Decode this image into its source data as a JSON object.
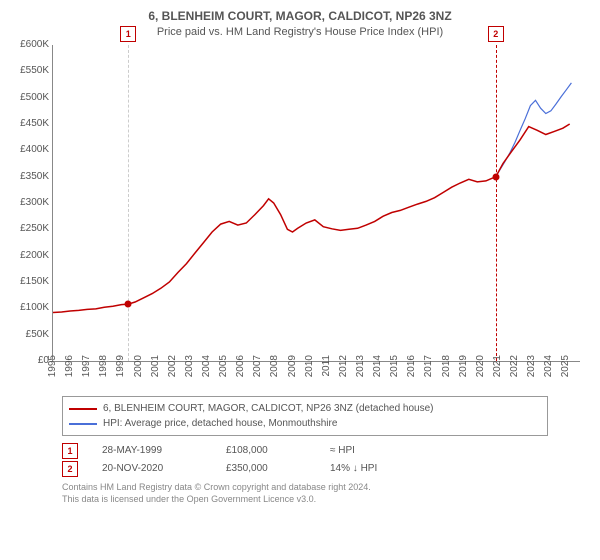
{
  "title": "6, BLENHEIM COURT, MAGOR, CALDICOT, NP26 3NZ",
  "subtitle": "Price paid vs. HM Land Registry's House Price Index (HPI)",
  "chart": {
    "type": "line",
    "background_color": "#ffffff",
    "axis_color": "#888888",
    "text_color": "#555555",
    "label_fontsize": 10,
    "ylim": [
      0,
      600000
    ],
    "ytick_step": 50000,
    "y_prefix": "£",
    "y_suffix": "K",
    "years": [
      1995,
      1996,
      1997,
      1998,
      1999,
      2000,
      2001,
      2002,
      2003,
      2004,
      2005,
      2006,
      2007,
      2008,
      2009,
      2010,
      2011,
      2012,
      2013,
      2014,
      2015,
      2016,
      2017,
      2018,
      2019,
      2020,
      2021,
      2022,
      2023,
      2024,
      2025
    ],
    "xlim": [
      1995,
      2025.8
    ],
    "series": {
      "price_paid": {
        "color": "#c00000",
        "line_width": 1.5,
        "x": [
          1995,
          1995.5,
          1996,
          1996.5,
          1997,
          1997.5,
          1998,
          1998.5,
          1999,
          1999.4,
          1999.8,
          2000.3,
          2000.8,
          2001.3,
          2001.8,
          2002.3,
          2002.8,
          2003.3,
          2003.8,
          2004.3,
          2004.8,
          2005.3,
          2005.8,
          2006.3,
          2006.8,
          2007.3,
          2007.6,
          2007.9,
          2008.3,
          2008.7,
          2009,
          2009.3,
          2009.8,
          2010.3,
          2010.8,
          2011.3,
          2011.8,
          2012.3,
          2012.8,
          2013.3,
          2013.8,
          2014.3,
          2014.8,
          2015.3,
          2015.8,
          2016.3,
          2016.8,
          2017.3,
          2017.8,
          2018.3,
          2018.8,
          2019.3,
          2019.8,
          2020.3,
          2020.88,
          2021.3,
          2021.8,
          2022.3,
          2022.8,
          2023.3,
          2023.8,
          2024.3,
          2024.8,
          2025.2
        ],
        "y": [
          92000,
          93000,
          95000,
          96000,
          98000,
          99000,
          102000,
          104000,
          107000,
          108000,
          112000,
          120000,
          128000,
          138000,
          150000,
          168000,
          185000,
          205000,
          225000,
          245000,
          260000,
          265000,
          258000,
          262000,
          278000,
          295000,
          308000,
          300000,
          278000,
          250000,
          245000,
          252000,
          262000,
          268000,
          255000,
          251000,
          248000,
          250000,
          252000,
          258000,
          265000,
          275000,
          282000,
          286000,
          292000,
          298000,
          303000,
          310000,
          320000,
          330000,
          338000,
          345000,
          340000,
          342000,
          350000,
          375000,
          398000,
          420000,
          445000,
          438000,
          430000,
          436000,
          442000,
          450000
        ]
      },
      "hpi": {
        "color": "#4a6fd8",
        "line_width": 1.2,
        "x": [
          2020.88,
          2021.1,
          2021.4,
          2021.7,
          2022,
          2022.3,
          2022.6,
          2022.9,
          2023.2,
          2023.5,
          2023.8,
          2024.1,
          2024.4,
          2024.7,
          2025,
          2025.3
        ],
        "y": [
          350000,
          362000,
          378000,
          395000,
          415000,
          438000,
          460000,
          485000,
          495000,
          480000,
          470000,
          475000,
          488000,
          502000,
          515000,
          528000
        ]
      }
    },
    "sale_markers": [
      {
        "idx": "1",
        "x": 1999.4,
        "y": 108000,
        "dash_color": "#cccccc"
      },
      {
        "idx": "2",
        "x": 2020.88,
        "y": 350000,
        "dash_color": "#c00000"
      }
    ]
  },
  "legend": {
    "series1": {
      "label": "6, BLENHEIM COURT, MAGOR, CALDICOT, NP26 3NZ (detached house)",
      "color": "#c00000"
    },
    "series2": {
      "label": "HPI: Average price, detached house, Monmouthshire",
      "color": "#4a6fd8"
    }
  },
  "sales": [
    {
      "idx": "1",
      "date": "28-MAY-1999",
      "price": "£108,000",
      "delta": "≈ HPI"
    },
    {
      "idx": "2",
      "date": "20-NOV-2020",
      "price": "£350,000",
      "delta": "14% ↓ HPI"
    }
  ],
  "credits": {
    "line1": "Contains HM Land Registry data © Crown copyright and database right 2024.",
    "line2": "This data is licensed under the Open Government Licence v3.0."
  }
}
